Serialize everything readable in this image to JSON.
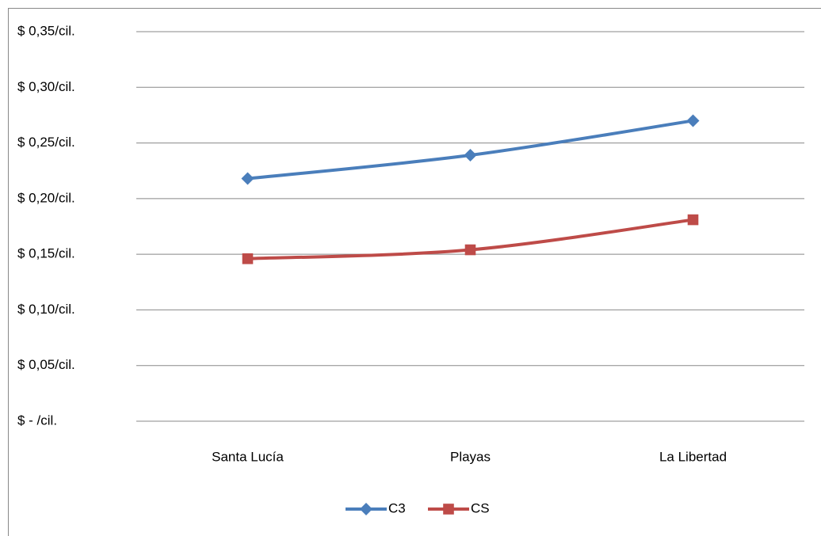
{
  "chart_data": {
    "type": "line",
    "categories": [
      "Santa Lucía",
      "Playas",
      "La Libertad"
    ],
    "series": [
      {
        "name": "C3",
        "color": "#4a7ebb",
        "marker": "diamond",
        "values": [
          0.218,
          0.239,
          0.27
        ]
      },
      {
        "name": "CS",
        "color": "#be4b48",
        "marker": "square",
        "values": [
          0.146,
          0.154,
          0.181
        ]
      }
    ],
    "ylim": [
      0,
      0.35
    ],
    "yticks": [
      {
        "value": 0,
        "label": "$ -  /cil."
      },
      {
        "value": 0.05,
        "label": "$ 0,05/cil."
      },
      {
        "value": 0.1,
        "label": "$ 0,10/cil."
      },
      {
        "value": 0.15,
        "label": "$ 0,15/cil."
      },
      {
        "value": 0.2,
        "label": "$ 0,20/cil."
      },
      {
        "value": 0.25,
        "label": "$ 0,25/cil."
      },
      {
        "value": 0.3,
        "label": "$ 0,30/cil."
      },
      {
        "value": 0.35,
        "label": "$ 0,35/cil."
      }
    ],
    "grid": true,
    "smooth": true,
    "legend": "bottom"
  }
}
